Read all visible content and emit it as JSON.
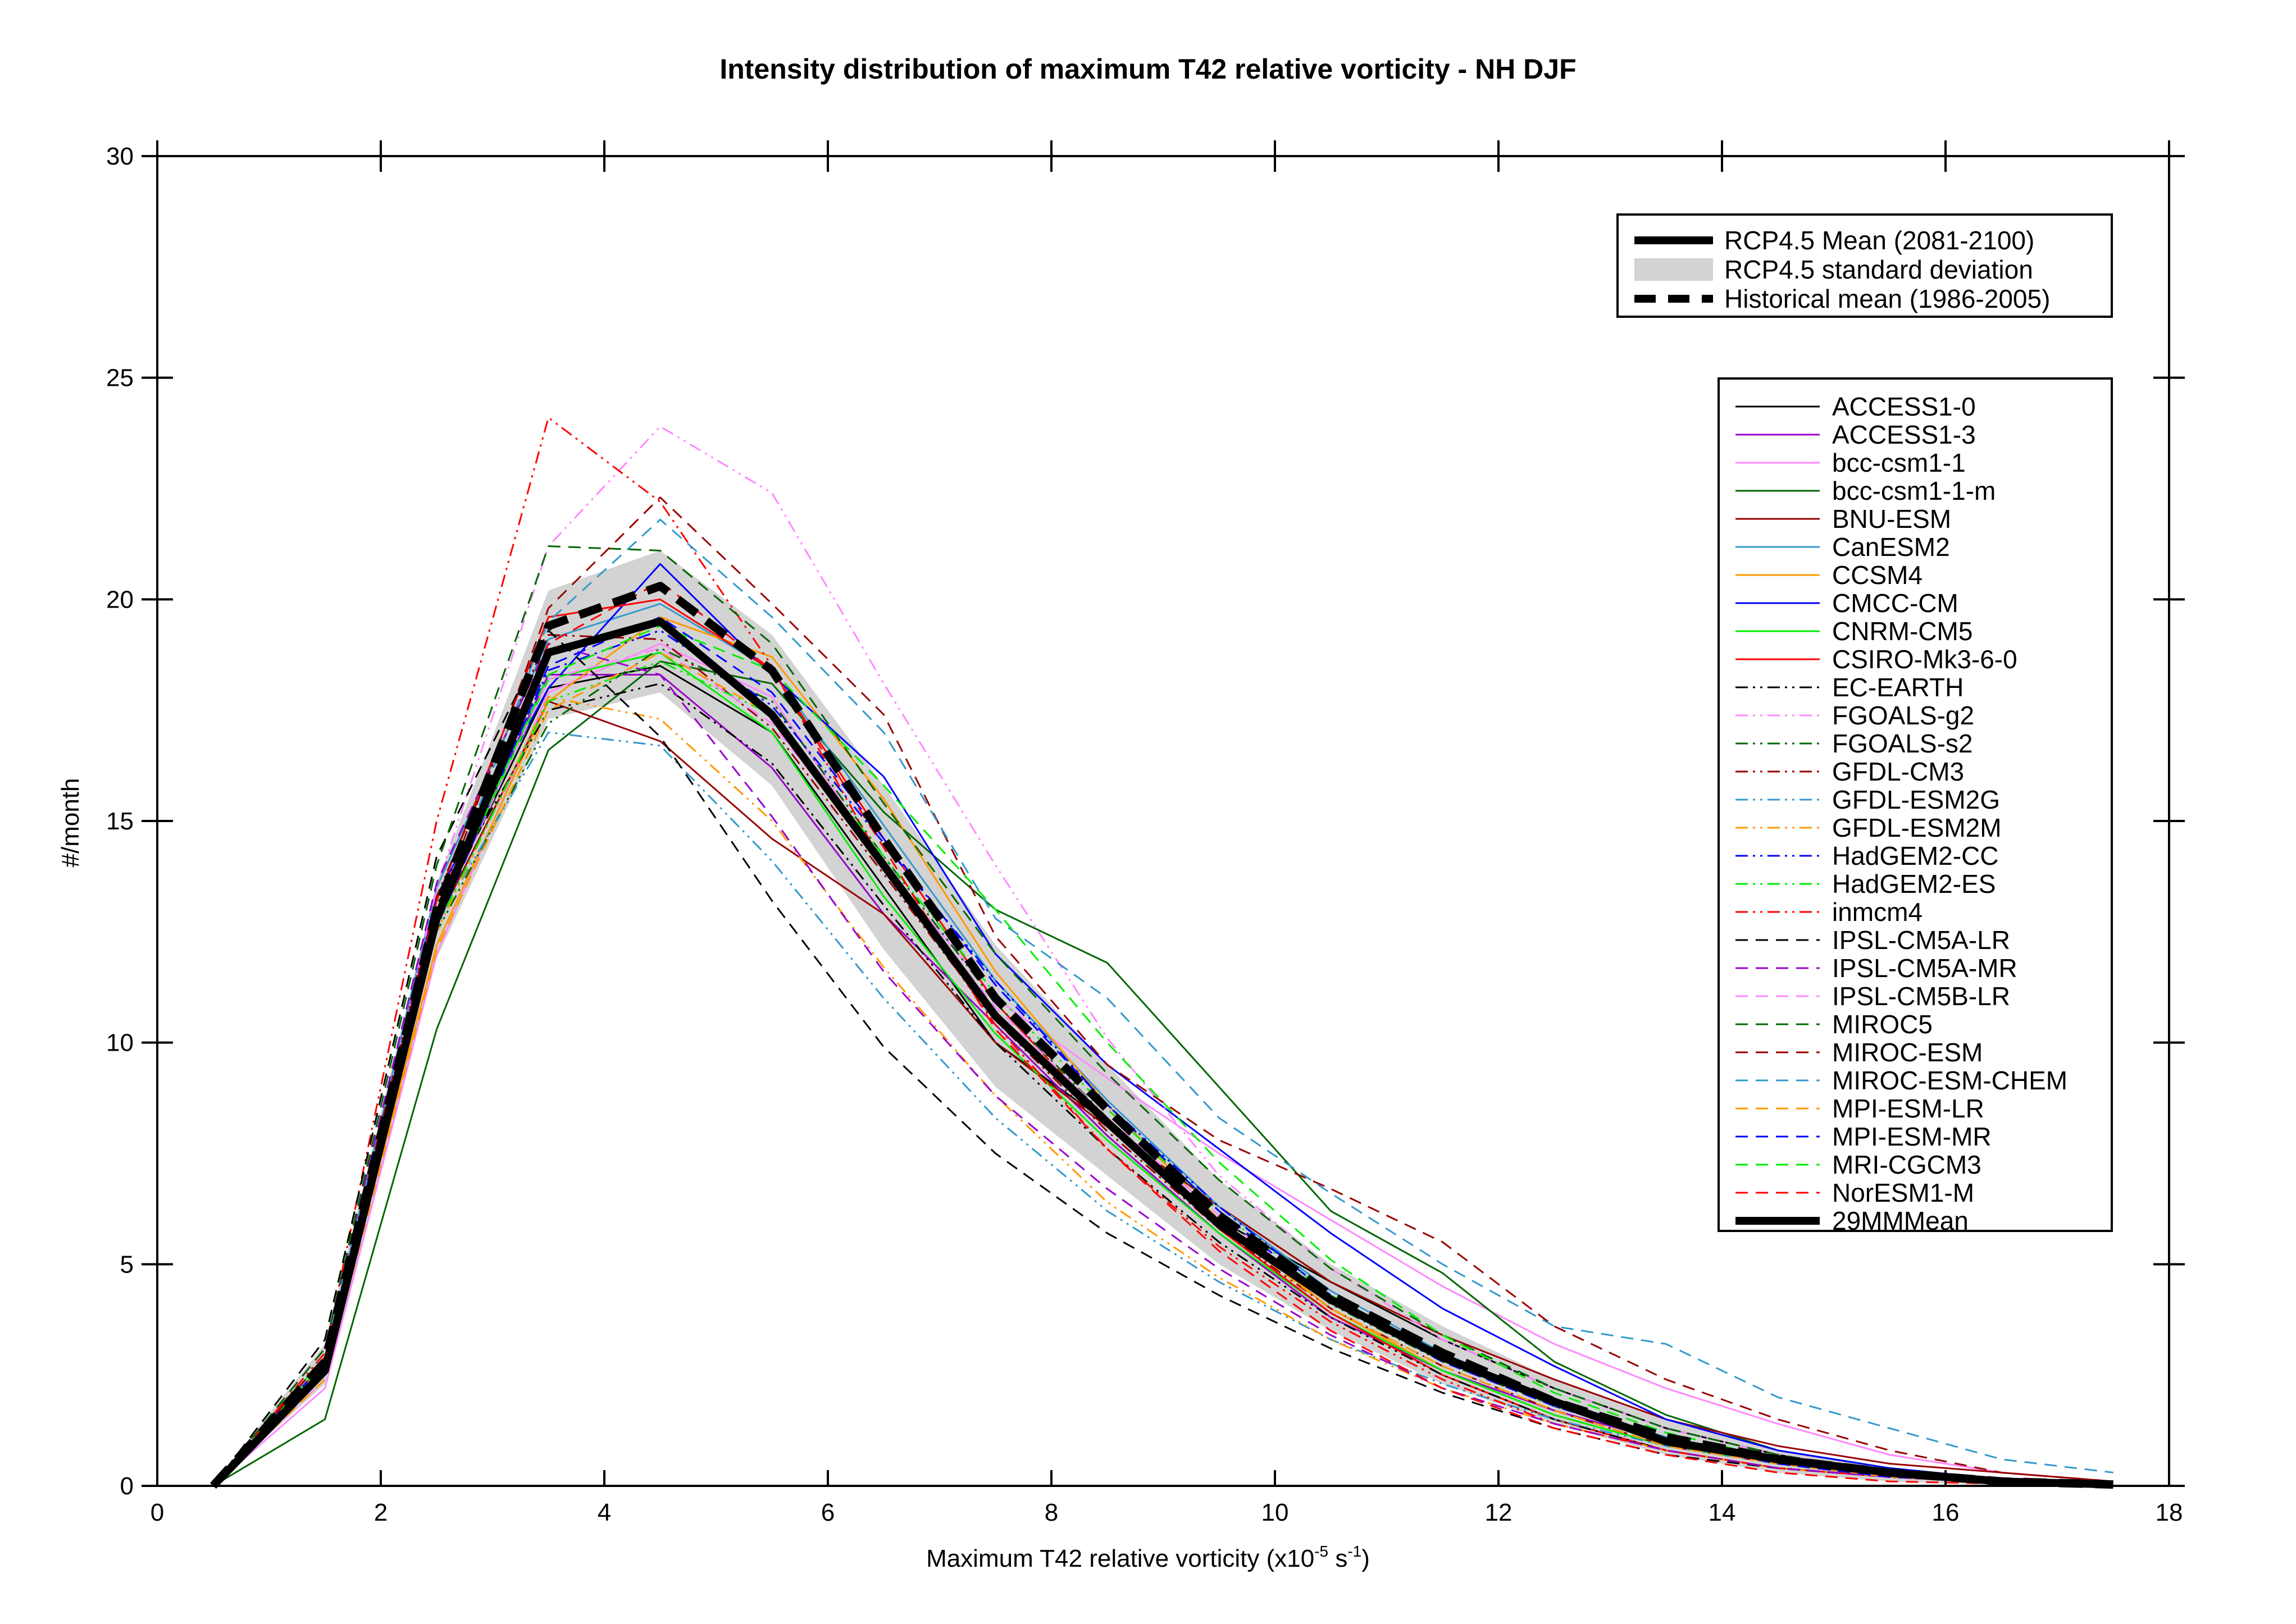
{
  "chart_data": {
    "type": "line",
    "title": "Intensity distribution of maximum T42 relative vorticity - NH DJF",
    "xlabel_main": "Maximum T42 relative vorticity (x10",
    "xlabel_exp": "-5",
    "xlabel_mid": " s",
    "xlabel_exp2": "-1",
    "xlabel_end": ")",
    "ylabel": "#/month",
    "xlim": [
      0,
      18
    ],
    "ylim": [
      0,
      30
    ],
    "xticks": [
      0,
      2,
      4,
      6,
      8,
      10,
      12,
      14,
      16,
      18
    ],
    "yticks": [
      0,
      5,
      10,
      15,
      20,
      25,
      30
    ],
    "grid": false,
    "x": [
      0.5,
      1.5,
      2.5,
      3.5,
      4.5,
      5.5,
      6.5,
      7.5,
      8.5,
      9.5,
      10.5,
      11.5,
      12.5,
      13.5,
      14.5,
      15.5,
      16.5,
      17.5
    ],
    "legend_top": [
      {
        "label": "RCP4.5 Mean (2081-2100)",
        "kind": "thick-solid"
      },
      {
        "label": "RCP4.5 standard deviation",
        "kind": "band"
      },
      {
        "label": "Historical mean (1986-2005)",
        "kind": "thick-dashed"
      }
    ],
    "std_band": {
      "upper": [
        0.05,
        3.2,
        13.6,
        20.2,
        21.1,
        19.2,
        15.8,
        12.2,
        9.5,
        6.9,
        5.0,
        3.6,
        2.4,
        1.5,
        0.8,
        0.4,
        0.2,
        0.06
      ],
      "lower": [
        0.0,
        2.3,
        11.9,
        17.3,
        17.9,
        15.8,
        12.1,
        9.0,
        7.0,
        5.0,
        3.5,
        2.3,
        1.4,
        0.7,
        0.3,
        0.1,
        0.02,
        0.0
      ]
    },
    "historical_mean": [
      0.0,
      2.8,
      13.0,
      19.4,
      20.3,
      18.4,
      14.6,
      11.0,
      8.5,
      6.1,
      4.3,
      3.0,
      1.9,
      1.1,
      0.6,
      0.3,
      0.1,
      0.03
    ],
    "series": [
      {
        "name": "ACCESS1-0",
        "color": "#000000",
        "dash": "solid",
        "values": [
          0.0,
          2.6,
          12.8,
          18.0,
          18.5,
          17.0,
          13.5,
          10.0,
          8.2,
          6.0,
          4.6,
          3.3,
          2.2,
          1.3,
          0.7,
          0.3,
          0.1,
          0.03
        ]
      },
      {
        "name": "ACCESS1-3",
        "color": "#9900cc",
        "dash": "solid",
        "values": [
          0.0,
          2.8,
          12.9,
          18.3,
          18.3,
          16.2,
          12.9,
          10.4,
          7.9,
          5.7,
          3.8,
          2.6,
          1.7,
          1.0,
          0.5,
          0.2,
          0.1,
          0.02
        ]
      },
      {
        "name": "bcc-csm1-1",
        "color": "#ff88ff",
        "dash": "solid",
        "values": [
          0.0,
          2.2,
          12.0,
          17.9,
          19.0,
          17.8,
          14.0,
          11.0,
          9.2,
          7.5,
          6.0,
          4.5,
          3.2,
          2.2,
          1.4,
          0.7,
          0.3,
          0.1
        ]
      },
      {
        "name": "bcc-csm1-1-m",
        "color": "#006600",
        "dash": "solid",
        "values": [
          0.0,
          1.5,
          10.3,
          16.6,
          18.6,
          18.1,
          15.2,
          13.0,
          11.8,
          9.0,
          6.2,
          4.8,
          2.8,
          1.6,
          0.8,
          0.4,
          0.15,
          0.05
        ]
      },
      {
        "name": "BNU-ESM",
        "color": "#990000",
        "dash": "solid",
        "values": [
          0.0,
          2.7,
          12.7,
          17.7,
          16.8,
          14.6,
          12.9,
          10.0,
          8.1,
          6.3,
          4.6,
          3.4,
          2.4,
          1.5,
          0.9,
          0.5,
          0.3,
          0.1
        ]
      },
      {
        "name": "CanESM2",
        "color": "#3399cc",
        "dash": "solid",
        "values": [
          0.0,
          2.9,
          13.5,
          19.1,
          19.9,
          18.4,
          14.9,
          11.4,
          8.7,
          6.3,
          4.4,
          3.0,
          1.9,
          1.1,
          0.6,
          0.3,
          0.1,
          0.03
        ]
      },
      {
        "name": "CCSM4",
        "color": "#ff9900",
        "dash": "solid",
        "values": [
          0.0,
          2.5,
          12.2,
          17.7,
          19.6,
          18.7,
          15.5,
          11.6,
          8.6,
          6.0,
          4.0,
          2.6,
          1.6,
          0.9,
          0.5,
          0.2,
          0.1,
          0.02
        ]
      },
      {
        "name": "CMCC-CM",
        "color": "#0000ff",
        "dash": "solid",
        "values": [
          0.0,
          2.7,
          13.3,
          18.0,
          20.8,
          18.3,
          16.0,
          12.0,
          9.5,
          7.6,
          5.7,
          4.0,
          2.7,
          1.5,
          0.8,
          0.4,
          0.15,
          0.05
        ]
      },
      {
        "name": "CNRM-CM5",
        "color": "#00ee00",
        "dash": "solid",
        "values": [
          0.0,
          2.9,
          12.8,
          18.2,
          18.8,
          17.0,
          13.3,
          10.2,
          7.8,
          5.7,
          3.9,
          2.6,
          1.6,
          0.9,
          0.5,
          0.2,
          0.1,
          0.02
        ]
      },
      {
        "name": "CSIRO-Mk3-6-0",
        "color": "#ff0000",
        "dash": "solid",
        "values": [
          0.0,
          2.8,
          13.2,
          19.6,
          20.0,
          18.4,
          14.6,
          10.9,
          8.2,
          5.8,
          3.9,
          2.5,
          1.5,
          0.8,
          0.4,
          0.2,
          0.07,
          0.02
        ]
      },
      {
        "name": "EC-EARTH",
        "color": "#000000",
        "dash": "dashdot",
        "values": [
          0.0,
          2.9,
          13.1,
          17.5,
          18.1,
          16.3,
          13.1,
          10.0,
          7.6,
          5.5,
          3.8,
          2.5,
          1.5,
          0.8,
          0.4,
          0.2,
          0.07,
          0.02
        ]
      },
      {
        "name": "FGOALS-g2",
        "color": "#ff88ff",
        "dash": "dashdot",
        "values": [
          0.0,
          2.4,
          13.5,
          21.2,
          23.9,
          22.4,
          18.1,
          14.0,
          10.1,
          7.0,
          4.9,
          3.3,
          2.2,
          1.3,
          0.7,
          0.3,
          0.1,
          0.03
        ]
      },
      {
        "name": "FGOALS-s2",
        "color": "#006600",
        "dash": "dashdot",
        "values": [
          0.0,
          2.8,
          12.5,
          17.2,
          18.9,
          17.7,
          14.2,
          10.9,
          8.3,
          6.0,
          4.1,
          2.8,
          1.8,
          1.0,
          0.5,
          0.2,
          0.1,
          0.02
        ]
      },
      {
        "name": "GFDL-CM3",
        "color": "#990000",
        "dash": "dashdot",
        "values": [
          0.0,
          2.9,
          13.3,
          19.2,
          19.1,
          17.1,
          13.8,
          10.5,
          8.0,
          5.8,
          4.0,
          2.7,
          1.7,
          0.9,
          0.5,
          0.2,
          0.1,
          0.02
        ]
      },
      {
        "name": "GFDL-ESM2G",
        "color": "#3399cc",
        "dash": "dashdot",
        "values": [
          0.0,
          2.6,
          12.7,
          17.0,
          16.7,
          14.1,
          11.0,
          8.3,
          6.2,
          4.6,
          3.3,
          2.3,
          1.5,
          0.9,
          0.5,
          0.2,
          0.1,
          0.03
        ]
      },
      {
        "name": "GFDL-ESM2M",
        "color": "#ff9900",
        "dash": "dashdot",
        "values": [
          0.0,
          2.5,
          12.5,
          17.8,
          17.3,
          15.0,
          11.7,
          8.8,
          6.4,
          4.7,
          3.3,
          2.2,
          1.4,
          0.8,
          0.4,
          0.2,
          0.07,
          0.02
        ]
      },
      {
        "name": "HadGEM2-CC",
        "color": "#0000ff",
        "dash": "dashdot",
        "values": [
          0.0,
          2.8,
          12.9,
          18.4,
          19.3,
          17.6,
          14.5,
          11.4,
          8.6,
          6.3,
          4.3,
          2.9,
          1.8,
          1.0,
          0.5,
          0.2,
          0.1,
          0.03
        ]
      },
      {
        "name": "HadGEM2-ES",
        "color": "#00ee00",
        "dash": "dashdot",
        "values": [
          0.0,
          2.7,
          12.6,
          17.7,
          18.6,
          17.4,
          14.2,
          11.1,
          8.5,
          6.2,
          4.3,
          2.9,
          1.8,
          1.0,
          0.5,
          0.2,
          0.1,
          0.03
        ]
      },
      {
        "name": "inmcm4",
        "color": "#ff0000",
        "dash": "dashdot",
        "values": [
          0.0,
          3.0,
          15.0,
          24.1,
          22.2,
          18.5,
          14.0,
          10.4,
          7.6,
          5.4,
          3.7,
          2.4,
          1.4,
          0.8,
          0.4,
          0.2,
          0.07,
          0.02
        ]
      },
      {
        "name": "IPSL-CM5A-LR",
        "color": "#000000",
        "dash": "dash",
        "values": [
          0.0,
          3.3,
          14.2,
          19.3,
          16.9,
          13.2,
          9.9,
          7.5,
          5.7,
          4.3,
          3.1,
          2.1,
          1.3,
          0.7,
          0.4,
          0.2,
          0.07,
          0.02
        ]
      },
      {
        "name": "IPSL-CM5A-MR",
        "color": "#9900cc",
        "dash": "dash",
        "values": [
          0.0,
          3.1,
          13.6,
          19.0,
          18.3,
          15.1,
          11.6,
          8.8,
          6.7,
          4.9,
          3.4,
          2.2,
          1.4,
          0.8,
          0.4,
          0.2,
          0.07,
          0.02
        ]
      },
      {
        "name": "IPSL-CM5B-LR",
        "color": "#ff88ff",
        "dash": "dash",
        "values": [
          0.0,
          2.6,
          12.7,
          18.2,
          18.9,
          17.2,
          14.0,
          10.8,
          8.3,
          6.1,
          4.2,
          2.8,
          1.8,
          1.0,
          0.5,
          0.2,
          0.1,
          0.03
        ]
      },
      {
        "name": "MIROC5",
        "color": "#006600",
        "dash": "dash",
        "values": [
          0.0,
          3.1,
          14.0,
          21.2,
          21.1,
          19.0,
          15.4,
          12.0,
          9.3,
          6.9,
          4.9,
          3.4,
          2.2,
          1.3,
          0.7,
          0.3,
          0.1,
          0.03
        ]
      },
      {
        "name": "MIROC-ESM",
        "color": "#990000",
        "dash": "dash",
        "values": [
          0.0,
          2.5,
          12.9,
          19.8,
          22.3,
          19.9,
          17.4,
          12.4,
          9.5,
          7.8,
          6.7,
          5.5,
          3.6,
          2.4,
          1.5,
          0.8,
          0.3,
          0.1
        ]
      },
      {
        "name": "MIROC-ESM-CHEM",
        "color": "#3399cc",
        "dash": "dash",
        "values": [
          0.0,
          2.5,
          12.8,
          19.5,
          21.8,
          19.6,
          17.0,
          12.8,
          11.0,
          8.3,
          6.6,
          5.0,
          3.6,
          3.2,
          2.0,
          1.3,
          0.6,
          0.3
        ]
      },
      {
        "name": "MPI-ESM-LR",
        "color": "#ff9900",
        "dash": "dash",
        "values": [
          0.0,
          2.4,
          12.1,
          17.5,
          18.8,
          17.4,
          13.9,
          10.6,
          8.1,
          5.9,
          4.0,
          2.7,
          1.7,
          0.9,
          0.5,
          0.2,
          0.1,
          0.02
        ]
      },
      {
        "name": "MPI-ESM-MR",
        "color": "#0000ff",
        "dash": "dash",
        "values": [
          0.0,
          2.6,
          12.6,
          18.5,
          19.6,
          17.9,
          14.6,
          11.3,
          8.6,
          6.2,
          4.2,
          2.8,
          1.8,
          1.0,
          0.5,
          0.2,
          0.1,
          0.02
        ]
      },
      {
        "name": "MRI-CGCM3",
        "color": "#00ee00",
        "dash": "dash",
        "values": [
          0.0,
          2.8,
          12.8,
          18.3,
          19.4,
          18.4,
          15.8,
          13.0,
          10.0,
          7.3,
          5.1,
          3.4,
          2.1,
          1.2,
          0.6,
          0.3,
          0.1,
          0.03
        ]
      },
      {
        "name": "NorESM1-M",
        "color": "#ff0000",
        "dash": "dash",
        "values": [
          0.0,
          2.7,
          12.9,
          19.0,
          20.4,
          18.4,
          14.4,
          10.3,
          7.6,
          5.3,
          3.5,
          2.2,
          1.3,
          0.7,
          0.3,
          0.1,
          0.05,
          0.01
        ]
      },
      {
        "name": "29MMMean",
        "color": "#000000",
        "dash": "thick",
        "values": [
          0.0,
          2.6,
          12.8,
          18.8,
          19.5,
          17.4,
          14.0,
          10.6,
          8.2,
          5.9,
          4.2,
          2.9,
          1.9,
          1.0,
          0.6,
          0.3,
          0.1,
          0.03
        ]
      }
    ]
  }
}
